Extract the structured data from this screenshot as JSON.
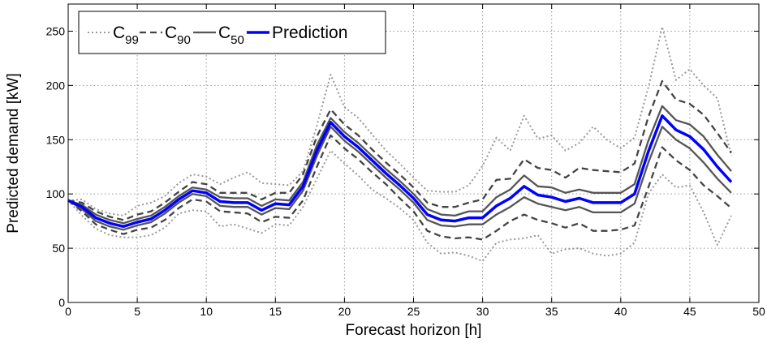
{
  "chart_data": {
    "type": "line",
    "xlabel": "Forecast horizon [h]",
    "ylabel": "Predicted demand [kW]",
    "xlim": [
      0,
      50
    ],
    "ylim": [
      0,
      275
    ],
    "xticks": [
      0,
      5,
      10,
      15,
      20,
      25,
      30,
      35,
      40,
      45,
      50
    ],
    "yticks": [
      0,
      50,
      100,
      150,
      200,
      250
    ],
    "grid": true,
    "legend": {
      "placement": "top-left",
      "orientation": "horizontal",
      "entries": [
        {
          "main": "C",
          "sub": "99"
        },
        {
          "main": "C",
          "sub": "90"
        },
        {
          "main": "C",
          "sub": "50"
        },
        {
          "main": "Prediction",
          "sub": ""
        }
      ]
    },
    "x": [
      0,
      1,
      2,
      3,
      4,
      5,
      6,
      7,
      8,
      9,
      10,
      11,
      12,
      13,
      14,
      15,
      16,
      17,
      18,
      19,
      20,
      21,
      22,
      23,
      24,
      25,
      26,
      27,
      28,
      29,
      30,
      31,
      32,
      33,
      34,
      35,
      36,
      37,
      38,
      39,
      40,
      41,
      42,
      43,
      44,
      45,
      46,
      47,
      48
    ],
    "series": [
      {
        "name": "Prediction",
        "style": "prediction",
        "color": "#0000ff",
        "values": [
          94,
          88,
          78,
          73,
          70,
          74,
          77,
          85,
          95,
          103,
          101,
          93,
          92,
          92,
          85,
          91,
          90,
          107,
          140,
          166,
          153,
          143,
          131,
          119,
          108,
          96,
          81,
          76,
          75,
          78,
          78,
          89,
          96,
          107,
          99,
          97,
          93,
          96,
          92,
          92,
          92,
          100,
          139,
          172,
          159,
          153,
          141,
          125,
          111
        ]
      },
      {
        "name": "C50",
        "style": "c50",
        "color": "#555555",
        "dash": "",
        "width": 2.3,
        "values": [
          [
            94,
            90,
            81,
            76,
            73,
            77,
            80,
            88,
            98,
            106,
            104,
            97,
            96,
            96,
            89,
            95,
            94,
            111,
            145,
            170,
            157,
            147,
            135,
            123,
            112,
            100,
            86,
            81,
            80,
            84,
            84,
            97,
            104,
            117,
            107,
            106,
            101,
            104,
            101,
            101,
            101,
            109,
            149,
            181,
            168,
            164,
            153,
            136,
            121
          ],
          [
            94,
            86,
            75,
            70,
            67,
            71,
            74,
            82,
            92,
            100,
            98,
            89,
            88,
            88,
            81,
            87,
            86,
            103,
            135,
            162,
            149,
            139,
            127,
            115,
            104,
            92,
            76,
            71,
            70,
            72,
            72,
            81,
            88,
            97,
            91,
            88,
            85,
            88,
            83,
            83,
            83,
            91,
            129,
            162,
            150,
            142,
            129,
            114,
            101
          ]
        ]
      },
      {
        "name": "C90",
        "style": "c90",
        "color": "#444444",
        "dash": "8 5",
        "width": 2.3,
        "values": [
          [
            94,
            92,
            84,
            79,
            76,
            81,
            84,
            92,
            102,
            111,
            109,
            101,
            101,
            101,
            95,
            101,
            101,
            118,
            153,
            178,
            164,
            154,
            141,
            129,
            118,
            106,
            92,
            88,
            88,
            92,
            95,
            113,
            114,
            132,
            124,
            122,
            115,
            124,
            122,
            121,
            120,
            128,
            171,
            204,
            187,
            183,
            173,
            156,
            138
          ],
          [
            94,
            84,
            72,
            67,
            63,
            67,
            69,
            76,
            87,
            95,
            93,
            84,
            83,
            82,
            74,
            79,
            78,
            94,
            125,
            154,
            142,
            132,
            120,
            109,
            96,
            84,
            66,
            61,
            59,
            60,
            58,
            66,
            75,
            81,
            76,
            73,
            69,
            73,
            66,
            66,
            67,
            71,
            106,
            143,
            131,
            122,
            108,
            98,
            87
          ]
        ]
      },
      {
        "name": "C99",
        "style": "c99",
        "color": "#999999",
        "dash": "2 3",
        "width": 2.0,
        "values": [
          [
            94,
            95,
            86,
            82,
            80,
            89,
            92,
            98,
            110,
            118,
            116,
            109,
            115,
            120,
            110,
            109,
            108,
            121,
            163,
            210,
            180,
            170,
            155,
            140,
            128,
            115,
            103,
            102,
            102,
            108,
            126,
            152,
            140,
            172,
            151,
            154,
            140,
            147,
            162,
            150,
            142,
            152,
            198,
            254,
            205,
            215,
            200,
            188,
            135
          ],
          [
            94,
            80,
            68,
            62,
            60,
            60,
            62,
            69,
            82,
            85,
            84,
            70,
            72,
            68,
            64,
            72,
            71,
            88,
            114,
            140,
            128,
            117,
            104,
            96,
            87,
            76,
            55,
            45,
            46,
            43,
            38,
            55,
            58,
            59,
            62,
            45,
            49,
            50,
            45,
            43,
            45,
            55,
            100,
            118,
            106,
            108,
            83,
            53,
            80
          ]
        ]
      }
    ]
  }
}
